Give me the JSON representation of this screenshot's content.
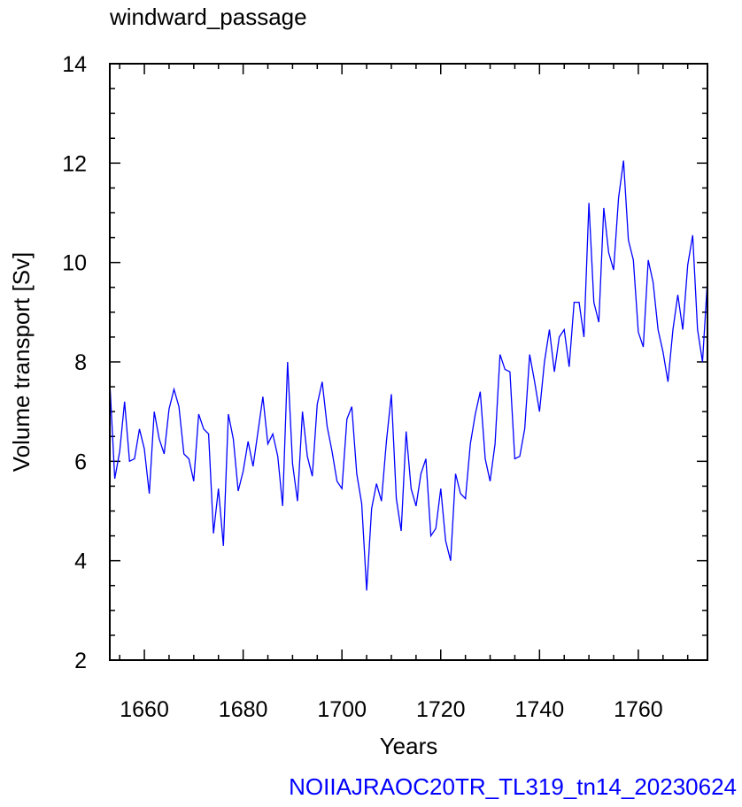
{
  "chart_data": {
    "type": "line",
    "title": "windward_passage",
    "xlabel": "Years",
    "ylabel": "Volume transport [Sv]",
    "footer": "NOIIAJRAOC20TR_TL319_tn14_20230624",
    "xlim": [
      1653,
      1774
    ],
    "ylim": [
      2,
      14
    ],
    "x_ticks": [
      1660,
      1680,
      1700,
      1720,
      1740,
      1760
    ],
    "y_ticks": [
      2,
      4,
      6,
      8,
      10,
      12,
      14
    ],
    "x_tick_labels": [
      "1660",
      "1680",
      "1700",
      "1720",
      "1740",
      "1760"
    ],
    "y_tick_labels": [
      "2",
      "4",
      "6",
      "8",
      "10",
      "12",
      "14"
    ],
    "grid": false,
    "legend": "none",
    "series": [
      {
        "color": "#0000ff",
        "x_start": 1653,
        "x_step": 1,
        "values": [
          7.6,
          5.65,
          6.2,
          7.2,
          6.0,
          6.05,
          6.65,
          6.25,
          5.35,
          7.0,
          6.45,
          6.15,
          7.05,
          7.45,
          7.1,
          6.15,
          6.05,
          5.6,
          6.95,
          6.65,
          6.55,
          4.55,
          5.45,
          4.3,
          6.95,
          6.45,
          5.4,
          5.8,
          6.4,
          5.9,
          6.6,
          7.3,
          6.35,
          6.55,
          6.1,
          5.1,
          8.0,
          5.95,
          5.2,
          7.0,
          6.1,
          5.7,
          7.15,
          7.6,
          6.7,
          6.2,
          5.6,
          5.45,
          6.85,
          7.1,
          5.75,
          5.15,
          3.4,
          5.05,
          5.55,
          5.2,
          6.4,
          7.35,
          5.25,
          4.6,
          6.6,
          5.45,
          5.1,
          5.75,
          6.05,
          4.5,
          4.65,
          5.45,
          4.4,
          4.0,
          5.75,
          5.35,
          5.25,
          6.35,
          6.95,
          7.4,
          6.05,
          5.6,
          6.35,
          8.15,
          7.85,
          7.8,
          6.05,
          6.1,
          6.65,
          8.15,
          7.6,
          7.0,
          8.0,
          8.65,
          7.8,
          8.5,
          8.65,
          7.9,
          9.2,
          9.2,
          8.5,
          11.2,
          9.2,
          8.8,
          11.1,
          10.2,
          9.85,
          11.3,
          12.05,
          10.45,
          10.05,
          8.6,
          8.3,
          10.05,
          9.6,
          8.65,
          8.2,
          7.6,
          8.65,
          9.35,
          8.65,
          9.95,
          10.55,
          8.65,
          8.0,
          9.65
        ]
      }
    ]
  }
}
